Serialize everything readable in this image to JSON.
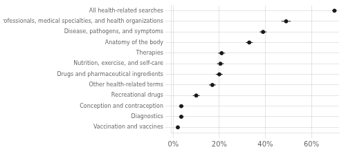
{
  "chart_data": {
    "type": "dot",
    "orientation": "horizontal",
    "categories": [
      "All health-related searches",
      "Health professionals, medical specialties, and health organizations",
      "Disease, pathogens, and symptoms",
      "Anatomy of the body",
      "Therapies",
      "Nutrition, exercise, and self-care",
      "Drugs and pharmaceutical ingredients",
      "Other health-related terms",
      "Recreational drugs",
      "Conception and contraception",
      "Diagnostics",
      "Vaccination and vaccines"
    ],
    "values": [
      70.0,
      49.0,
      39.0,
      33.0,
      21.0,
      20.5,
      20.0,
      17.0,
      10.0,
      3.5,
      3.5,
      2.0
    ],
    "error_low": [
      1.0,
      2.0,
      1.5,
      1.5,
      1.5,
      1.5,
      1.5,
      1.5,
      1.5,
      1.0,
      1.0,
      0.5
    ],
    "error_high": [
      1.0,
      2.0,
      1.5,
      1.5,
      1.5,
      1.5,
      1.5,
      1.5,
      1.5,
      1.0,
      1.0,
      0.5
    ],
    "color": "#1a1a1a",
    "xlim": [
      -1,
      72
    ],
    "xticks": [
      {
        "value": 0,
        "label": "0%"
      },
      {
        "value": 20,
        "label": "20%"
      },
      {
        "value": 40,
        "label": "40%"
      },
      {
        "value": 60,
        "label": "60%"
      }
    ],
    "grid": true
  }
}
